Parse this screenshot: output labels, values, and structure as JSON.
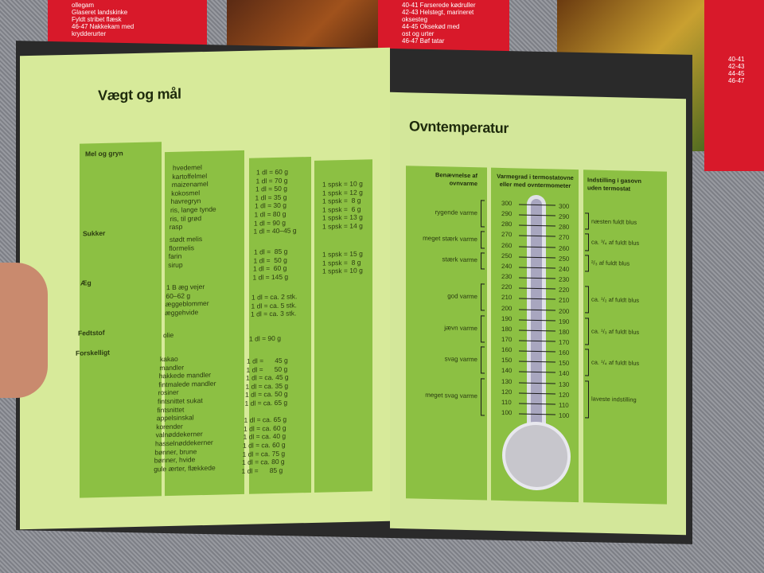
{
  "background_booklets": {
    "left_list": [
      "ollegam",
      "Glaseret landskinke",
      "Fyldt stribet flæsk",
      "46-47 Nakkekam med",
      "krydderurter"
    ],
    "mid_list": [
      "40-41 Farserede kødruller",
      "42-43 Helstegt, marineret",
      "oksesteg",
      "44-45 Oksekød med",
      "ost og urter",
      "46-47 Bøf tatar"
    ],
    "right_list": [
      "40-41",
      "42-43",
      "44-45",
      "46-47"
    ]
  },
  "left_page": {
    "title": "Vægt og mål",
    "groups": [
      {
        "category": "Mel og gryn",
        "items": [
          "hvedemel",
          "kartoffelmel",
          "maizenamel",
          "kokosmel",
          "havregryn",
          "ris, lange tynde",
          "ris, til grød",
          "rasp"
        ],
        "dl": [
          "1 dl = 60 g",
          "1 dl = 70 g",
          "1 dl = 50 g",
          "1 dl = 35 g",
          "1 dl = 30 g",
          "1 dl = 80 g",
          "1 dl = 90 g",
          "1 dl = 40–45 g"
        ],
        "spsk": [
          "1 spsk = 10 g",
          "1 spsk = 12 g",
          "1 spsk =  8 g",
          "1 spsk =  6 g",
          "1 spsk = 13 g",
          "1 spsk = 14 g"
        ]
      },
      {
        "category": "Sukker",
        "items": [
          "stødt melis",
          "flormelis",
          "farin",
          "sirup"
        ],
        "dl": [
          "1 dl =  85 g",
          "1 dl =  50 g",
          "1 dl =  60 g",
          "1 dl = 145 g"
        ],
        "spsk": [
          "1 spsk = 15 g",
          "1 spsk =  8 g",
          "1 spsk = 10 g"
        ]
      },
      {
        "category": "Æg",
        "items": [
          "1 B æg vejer",
          "60–62 g",
          "æggeblommer",
          "æggehvide"
        ],
        "dl": [
          "1 dl = ca. 2 stk.",
          "1 dl = ca. 5 stk.",
          "1 dl = ca. 3 stk."
        ],
        "spsk": []
      },
      {
        "category": "Fedtstof",
        "items": [
          "olie"
        ],
        "dl": [
          "1 dl = 90 g"
        ],
        "spsk": []
      },
      {
        "category": "Forskelligt",
        "items": [
          "kakao",
          "mandler",
          "hakkede mandler",
          "fintmalede mandler",
          "rosiner",
          "fintsnittet sukat",
          "fintsnittet",
          "appelsinskal",
          "korender",
          "valnøddekerner",
          "hasselnøddekerner",
          "bønner, brune",
          "bønner, hvide",
          "gule ærter, flækkede"
        ],
        "dl": [
          "1 dl =      45 g",
          "1 dl =      50 g",
          "1 dl = ca. 45 g",
          "1 dl = ca. 35 g",
          "1 dl = ca. 50 g",
          "1 dl = ca. 65 g",
          "",
          "1 dl = ca. 65 g",
          "1 dl = ca. 60 g",
          "1 dl = ca. 40 g",
          "1 dl = ca. 60 g",
          "1 dl = ca. 75 g",
          "1 dl = ca. 80 g",
          "1 dl =      85 g"
        ],
        "spsk": []
      }
    ]
  },
  "right_page": {
    "title": "Ovntemperatur",
    "headers": [
      "Benævnelse af ovnvarme",
      "Varmegrad i termostatovne eller med ovntermometer",
      "Indstilling i gasovn uden termostat"
    ],
    "temperatures": [
      300,
      290,
      280,
      270,
      260,
      250,
      240,
      230,
      220,
      210,
      200,
      190,
      180,
      170,
      160,
      150,
      140,
      130,
      120,
      110,
      100
    ],
    "heat_names": [
      {
        "label": "rygende varme",
        "from": 300,
        "to": 280
      },
      {
        "label": "meget stærk varme",
        "from": 270,
        "to": 260
      },
      {
        "label": "stærk varme",
        "from": 250,
        "to": 240
      },
      {
        "label": "god varme",
        "from": 220,
        "to": 200
      },
      {
        "label": "jævn varme",
        "from": 190,
        "to": 170
      },
      {
        "label": "svag varme",
        "from": 160,
        "to": 140
      },
      {
        "label": "meget svag varme",
        "from": 130,
        "to": 100
      }
    ],
    "gas_settings": [
      {
        "label": "næsten fuldt blus",
        "from": 290,
        "to": 280
      },
      {
        "label": "ca. ³/₄ af fuldt blus",
        "from": 270,
        "to": 260
      },
      {
        "label": "²/₃ af fuldt blus",
        "from": 250,
        "to": 240
      },
      {
        "label": "ca. ¹/₂ af fuldt blus",
        "from": 220,
        "to": 200
      },
      {
        "label": "ca. ¹/₃ af fuldt blus",
        "from": 190,
        "to": 170
      },
      {
        "label": "ca. ¹/₄ af fuldt blus",
        "from": 160,
        "to": 140
      },
      {
        "label": "laveste indstilling",
        "from": 130,
        "to": 100
      }
    ]
  }
}
